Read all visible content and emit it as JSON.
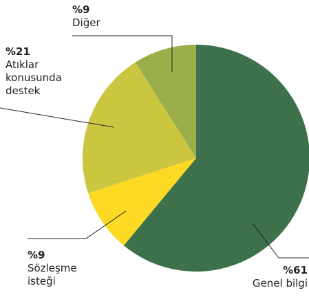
{
  "chart_data": {
    "type": "pie",
    "categories": [
      "Genel bilgi",
      "Sözleşme isteği",
      "Atıklar konusunda destek",
      "Diğer"
    ],
    "values": [
      61,
      9,
      21,
      9
    ],
    "value_labels": [
      "%61",
      "%9",
      "%21",
      "%9"
    ],
    "colors": [
      "#3d714c",
      "#fcd923",
      "#cbc640",
      "#9aae4a"
    ]
  }
}
